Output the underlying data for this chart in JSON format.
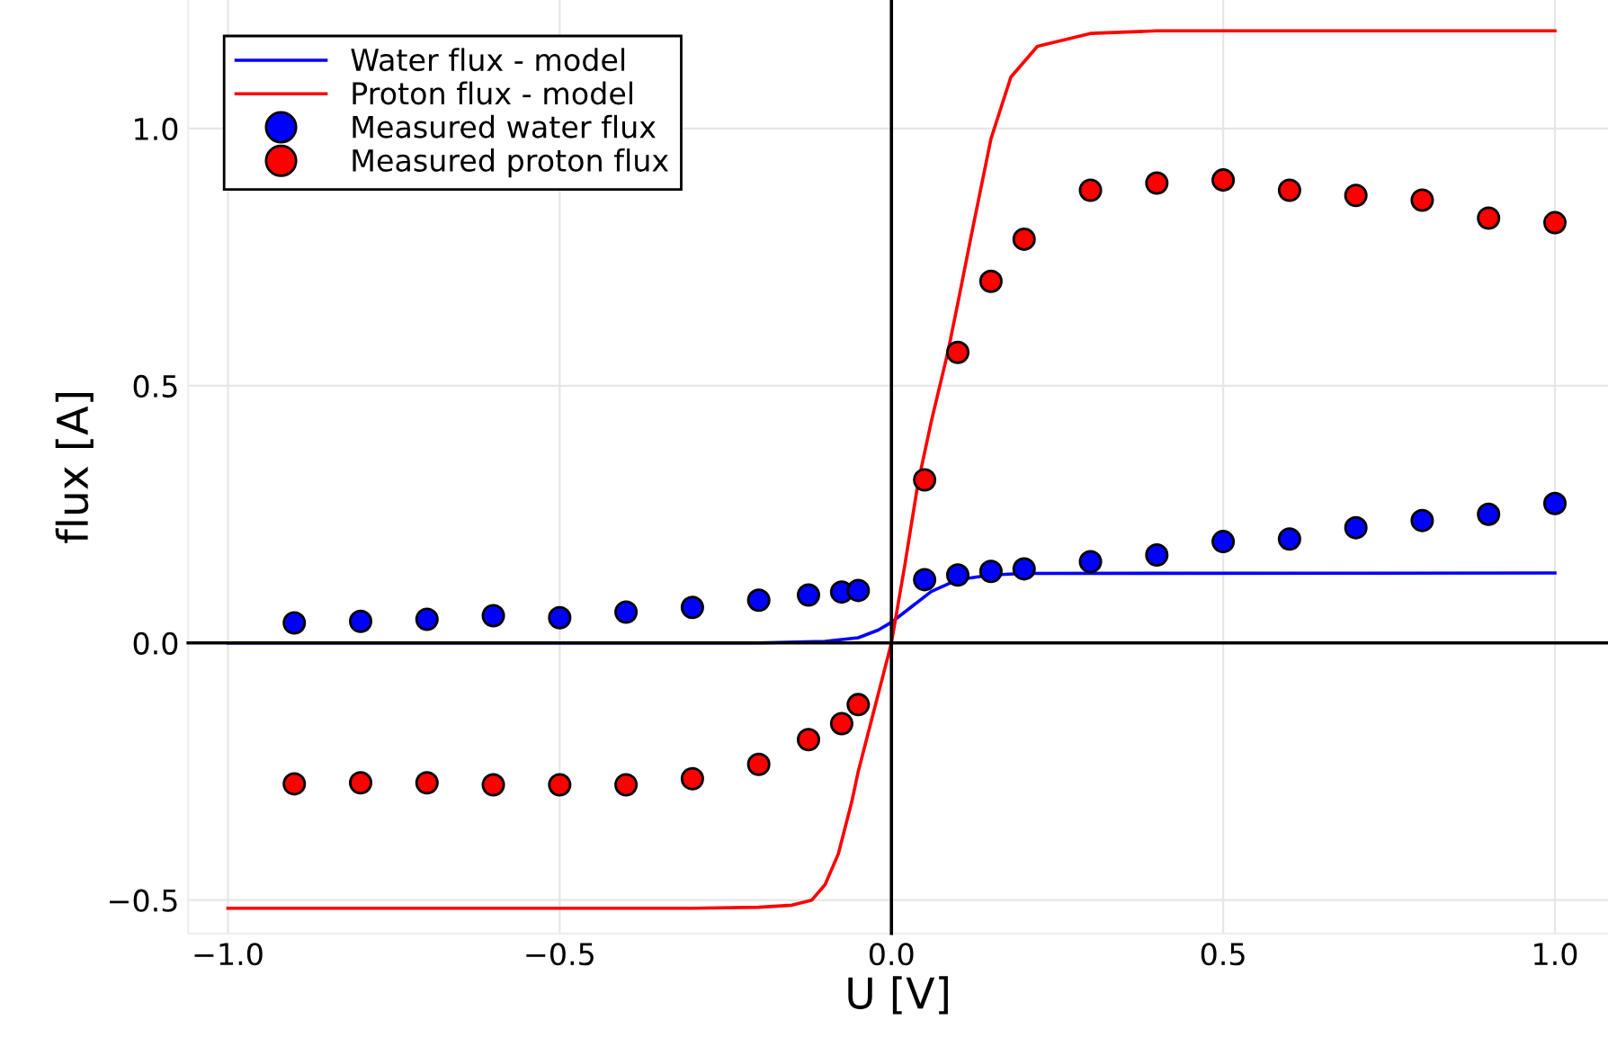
{
  "chart_data": {
    "type": "line",
    "xlabel": "U [V]",
    "ylabel": "flux [A]",
    "series": [
      {
        "name": "Water flux - model",
        "color": "#0000ff",
        "x": [
          -1.0,
          -0.2,
          -0.1,
          -0.05,
          -0.02,
          0.0,
          0.03,
          0.06,
          0.1,
          0.15,
          0.2,
          1.0
        ],
        "values": [
          0.0,
          0.0,
          0.003,
          0.01,
          0.025,
          0.04,
          0.07,
          0.1,
          0.123,
          0.132,
          0.135,
          0.136
        ]
      },
      {
        "name": "Proton flux - model",
        "color": "#ff0000",
        "x": [
          -1.0,
          -0.3,
          -0.2,
          -0.15,
          -0.12,
          -0.1,
          -0.08,
          -0.06,
          -0.05,
          -0.03,
          -0.01,
          0.0,
          0.02,
          0.04,
          0.06,
          0.085,
          0.1,
          0.12,
          0.15,
          0.18,
          0.22,
          0.3,
          0.4,
          1.0
        ],
        "values": [
          -0.516,
          -0.516,
          -0.514,
          -0.51,
          -0.5,
          -0.47,
          -0.41,
          -0.31,
          -0.25,
          -0.15,
          -0.05,
          0.0,
          0.15,
          0.31,
          0.43,
          0.565,
          0.66,
          0.79,
          0.98,
          1.1,
          1.16,
          1.185,
          1.19,
          1.19
        ]
      },
      {
        "name": "Measured water flux",
        "type": "scatter",
        "color": "#0000ff",
        "marker": "circle",
        "x": [
          -0.9,
          -0.8,
          -0.7,
          -0.6,
          -0.5,
          -0.4,
          -0.3,
          -0.2,
          -0.125,
          -0.075,
          -0.05,
          0.05,
          0.1,
          0.15,
          0.2,
          0.3,
          0.4,
          0.5,
          0.6,
          0.7,
          0.8,
          0.9,
          1.0
        ],
        "values": [
          0.039,
          0.042,
          0.046,
          0.053,
          0.049,
          0.06,
          0.069,
          0.083,
          0.093,
          0.099,
          0.102,
          0.123,
          0.132,
          0.139,
          0.144,
          0.158,
          0.171,
          0.197,
          0.202,
          0.224,
          0.238,
          0.25,
          0.271
        ]
      },
      {
        "name": "Measured proton flux",
        "type": "scatter",
        "color": "#ff0000",
        "marker": "circle",
        "x": [
          -0.9,
          -0.8,
          -0.7,
          -0.6,
          -0.5,
          -0.4,
          -0.3,
          -0.2,
          -0.125,
          -0.075,
          -0.05,
          0.05,
          0.1,
          0.15,
          0.2,
          0.3,
          0.4,
          0.5,
          0.6,
          0.7,
          0.8,
          0.9,
          1.0
        ],
        "values": [
          -0.274,
          -0.272,
          -0.272,
          -0.276,
          -0.276,
          -0.276,
          -0.264,
          -0.236,
          -0.188,
          -0.157,
          -0.12,
          0.317,
          0.565,
          0.703,
          0.785,
          0.88,
          0.894,
          0.9,
          0.88,
          0.87,
          0.861,
          0.826,
          0.817
        ]
      }
    ],
    "xlim": [
      -1.06,
      1.08
    ],
    "ylim": [
      -0.565,
      1.25
    ],
    "xticks": [
      {
        "value": -1.0,
        "label": "−1.0"
      },
      {
        "value": -0.5,
        "label": "−0.5"
      },
      {
        "value": 0,
        "label": "0.0"
      },
      {
        "value": 0.5,
        "label": "0.5"
      },
      {
        "value": 1,
        "label": "1.0"
      }
    ],
    "yticks": [
      {
        "value": -0.5,
        "label": "−0.5"
      },
      {
        "value": 0,
        "label": "0.0"
      },
      {
        "value": 0.5,
        "label": "0.5"
      },
      {
        "value": 1,
        "label": "1.0"
      }
    ],
    "grid": true,
    "legend": "top left"
  }
}
